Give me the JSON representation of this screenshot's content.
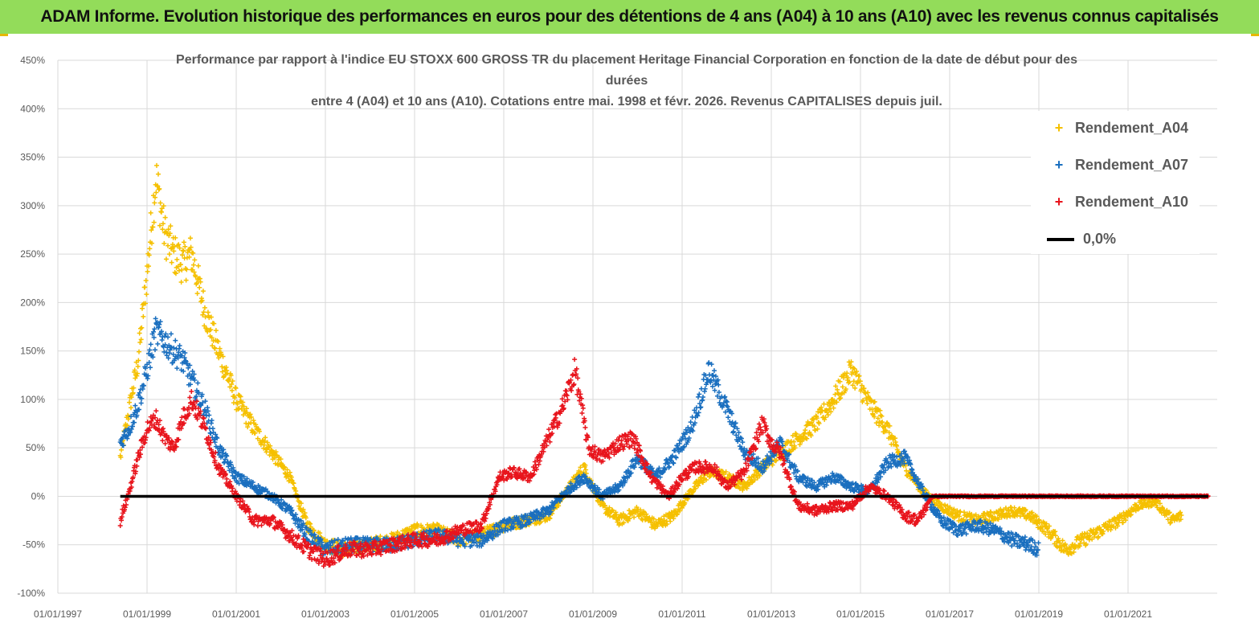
{
  "banner": {
    "text": "ADAM Informe. Evolution historique des performances en euros pour des détentions de 4 ans (A04) à 10 ans (A10) avec les revenus connus capitalisés"
  },
  "colors": {
    "banner_bg": "#93dc5a",
    "a04": "#f5c000",
    "a07": "#1a6fbf",
    "a10": "#e8141c",
    "zero": "#000000",
    "grid": "#d9d9d9"
  },
  "chart_data": {
    "type": "scatter",
    "title_lines": [
      "Performance par rapport à l'indice EU STOXX 600 GROSS TR  du placement Heritage Financial Corporation en fonction de la date de début pour des",
      "durées",
      "entre 4 (A04) et 10 ans (A10). Cotations entre mai. 1998 et févr. 2026. Revenus CAPITALISES depuis juil."
    ],
    "ylim": [
      -100,
      450
    ],
    "y_ticks": [
      450,
      400,
      350,
      300,
      250,
      200,
      150,
      100,
      50,
      0,
      -50,
      -100
    ],
    "y_tick_labels": [
      "450%",
      "400%",
      "350%",
      "300%",
      "250%",
      "200%",
      "150%",
      "100%",
      "50%",
      "0%",
      "-50%",
      "-100%"
    ],
    "xlim": [
      1997.0,
      2023.0
    ],
    "x_ticks": [
      1997,
      1999,
      2001,
      2003,
      2005,
      2007,
      2009,
      2011,
      2013,
      2015,
      2017,
      2019,
      2021
    ],
    "x_tick_labels": [
      "01/01/1997",
      "01/01/1999",
      "01/01/2001",
      "01/01/2003",
      "01/01/2005",
      "01/01/2007",
      "01/01/2009",
      "01/01/2011",
      "01/01/2013",
      "01/01/2015",
      "01/01/2017",
      "01/01/2019",
      "01/01/2021"
    ],
    "series": [
      {
        "name": "Rendement_A04",
        "x": [
          1998.4,
          1998.6,
          1998.8,
          1999.0,
          1999.2,
          1999.4,
          1999.6,
          1999.8,
          2000.0,
          2000.3,
          2000.6,
          2001.0,
          2001.4,
          2001.8,
          2002.2,
          2002.6,
          2003.0,
          2003.5,
          2004.0,
          2004.5,
          2005.0,
          2005.5,
          2006.0,
          2006.5,
          2007.0,
          2007.5,
          2008.0,
          2008.4,
          2008.8,
          2009.2,
          2009.6,
          2010.0,
          2010.4,
          2010.8,
          2011.2,
          2011.6,
          2012.0,
          2012.4,
          2012.8,
          2013.2,
          2013.6,
          2014.0,
          2014.4,
          2014.8,
          2015.2,
          2015.6,
          2016.0,
          2016.4,
          2016.8,
          2017.2,
          2017.6,
          2018.0,
          2018.4,
          2018.8,
          2019.2,
          2019.6,
          2020.0,
          2020.4,
          2020.8,
          2021.2,
          2021.6,
          2022.0,
          2022.2
        ],
        "y": [
          40,
          90,
          140,
          230,
          330,
          270,
          250,
          240,
          250,
          190,
          150,
          100,
          70,
          45,
          20,
          -30,
          -50,
          -55,
          -50,
          -45,
          -35,
          -35,
          -45,
          -40,
          -30,
          -25,
          -20,
          5,
          30,
          -10,
          -25,
          -15,
          -30,
          -20,
          5,
          25,
          20,
          10,
          30,
          45,
          60,
          75,
          100,
          130,
          95,
          70,
          30,
          5,
          -10,
          -20,
          -25,
          -20,
          -15,
          -20,
          -35,
          -55,
          -45,
          -35,
          -25,
          -10,
          -5,
          -25,
          -20
        ]
      },
      {
        "name": "Rendement_A07",
        "x": [
          1998.4,
          1998.6,
          1998.8,
          1999.0,
          1999.2,
          1999.4,
          1999.6,
          1999.8,
          2000.0,
          2000.3,
          2000.6,
          2001.0,
          2001.4,
          2001.8,
          2002.2,
          2002.6,
          2003.0,
          2003.5,
          2004.0,
          2004.5,
          2005.0,
          2005.5,
          2006.0,
          2006.5,
          2007.0,
          2007.5,
          2008.0,
          2008.4,
          2008.8,
          2009.2,
          2009.6,
          2010.0,
          2010.4,
          2010.8,
          2011.2,
          2011.6,
          2012.0,
          2012.4,
          2012.8,
          2013.2,
          2013.6,
          2014.0,
          2014.4,
          2014.8,
          2015.2,
          2015.6,
          2016.0,
          2016.4,
          2016.8,
          2017.2,
          2017.6,
          2018.0,
          2018.4,
          2018.8,
          2019.0
        ],
        "y": [
          55,
          70,
          95,
          130,
          170,
          160,
          150,
          140,
          120,
          90,
          50,
          20,
          10,
          0,
          -15,
          -40,
          -55,
          -50,
          -50,
          -50,
          -45,
          -40,
          -45,
          -45,
          -30,
          -25,
          -15,
          5,
          20,
          0,
          10,
          40,
          20,
          40,
          70,
          130,
          90,
          45,
          30,
          55,
          20,
          10,
          20,
          10,
          5,
          35,
          40,
          5,
          -25,
          -35,
          -30,
          -35,
          -45,
          -50,
          -55
        ]
      },
      {
        "name": "Rendement_A10",
        "x": [
          1998.4,
          1998.6,
          1998.8,
          1999.0,
          1999.2,
          1999.4,
          1999.6,
          1999.8,
          2000.0,
          2000.3,
          2000.6,
          2001.0,
          2001.4,
          2001.8,
          2002.2,
          2002.6,
          2003.0,
          2003.5,
          2004.0,
          2004.5,
          2005.0,
          2005.5,
          2006.0,
          2006.5,
          2006.9,
          2007.2,
          2007.6,
          2008.0,
          2008.3,
          2008.6,
          2008.9,
          2009.2,
          2009.6,
          2009.9,
          2010.3,
          2010.7,
          2011.0,
          2011.3,
          2011.7,
          2012.0,
          2012.4,
          2012.8,
          2013.0,
          2013.2,
          2013.6,
          2014.0,
          2014.4,
          2014.8,
          2015.2,
          2015.6,
          2016.0,
          2016.3,
          2016.6,
          2017.0,
          2017.5,
          2018.0,
          2018.5,
          2019.0,
          2019.5,
          2020.0,
          2020.5,
          2021.0,
          2021.5,
          2022.0,
          2022.8
        ],
        "y": [
          -25,
          5,
          40,
          70,
          80,
          60,
          50,
          80,
          100,
          70,
          30,
          0,
          -25,
          -25,
          -40,
          -55,
          -65,
          -55,
          -55,
          -50,
          -45,
          -45,
          -35,
          -30,
          20,
          25,
          20,
          60,
          90,
          130,
          50,
          40,
          55,
          60,
          20,
          0,
          20,
          30,
          30,
          10,
          25,
          75,
          55,
          45,
          -10,
          -15,
          -10,
          -10,
          10,
          0,
          -20,
          -25,
          0,
          0,
          0,
          0,
          0,
          0,
          0,
          0,
          0,
          0,
          0,
          0,
          0
        ]
      },
      {
        "name": "0,0%",
        "x": [
          1998.4,
          2022.8
        ],
        "y": [
          0,
          0
        ]
      }
    ]
  }
}
